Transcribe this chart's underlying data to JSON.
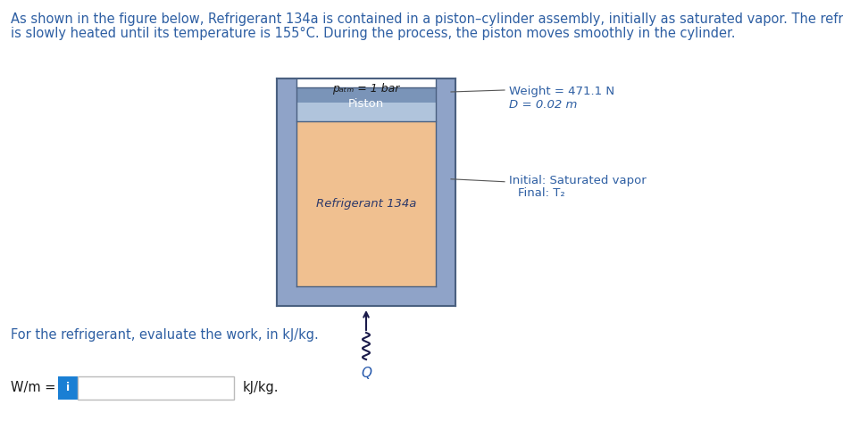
{
  "background_color": "#ffffff",
  "title_line1": "As shown in the figure below, Refrigerant 134a is contained in a piston–cylinder assembly, initially as saturated vapor. The refrigerant",
  "title_line2": "is slowly heated until its temperature is 155°C. During the process, the piston moves smoothly in the cylinder.",
  "title_fontsize": 10.5,
  "title_color": "#2e5fa3",
  "wall_color": "#8fa3c8",
  "wall_dark": "#6a82aa",
  "piston_top_color": "#6a82aa",
  "piston_bottom_color": "#a0b4d0",
  "refrigerant_color": "#f0c090",
  "annotation_color": "#2e5fa3",
  "annotation_fs": 9.5,
  "patm_label": "pₐₜₘ = 1 bar",
  "piston_label": "Piston",
  "refrig_label": "Refrigerant 134a",
  "Q_label": "Q",
  "weight_label": "Weight = 471.1 N",
  "D_label": "D = 0.02 m",
  "initial_label": "Initial: Saturated vapor",
  "final_label": "Final: T₂",
  "question_text": "For the refrigerant, evaluate the work, in kJ/kg.",
  "question_color": "#2e5fa3",
  "question_fs": 10.5,
  "wm_label": "W/m =",
  "kj_label": "kJ/kg.",
  "info_color": "#1a7fd4"
}
